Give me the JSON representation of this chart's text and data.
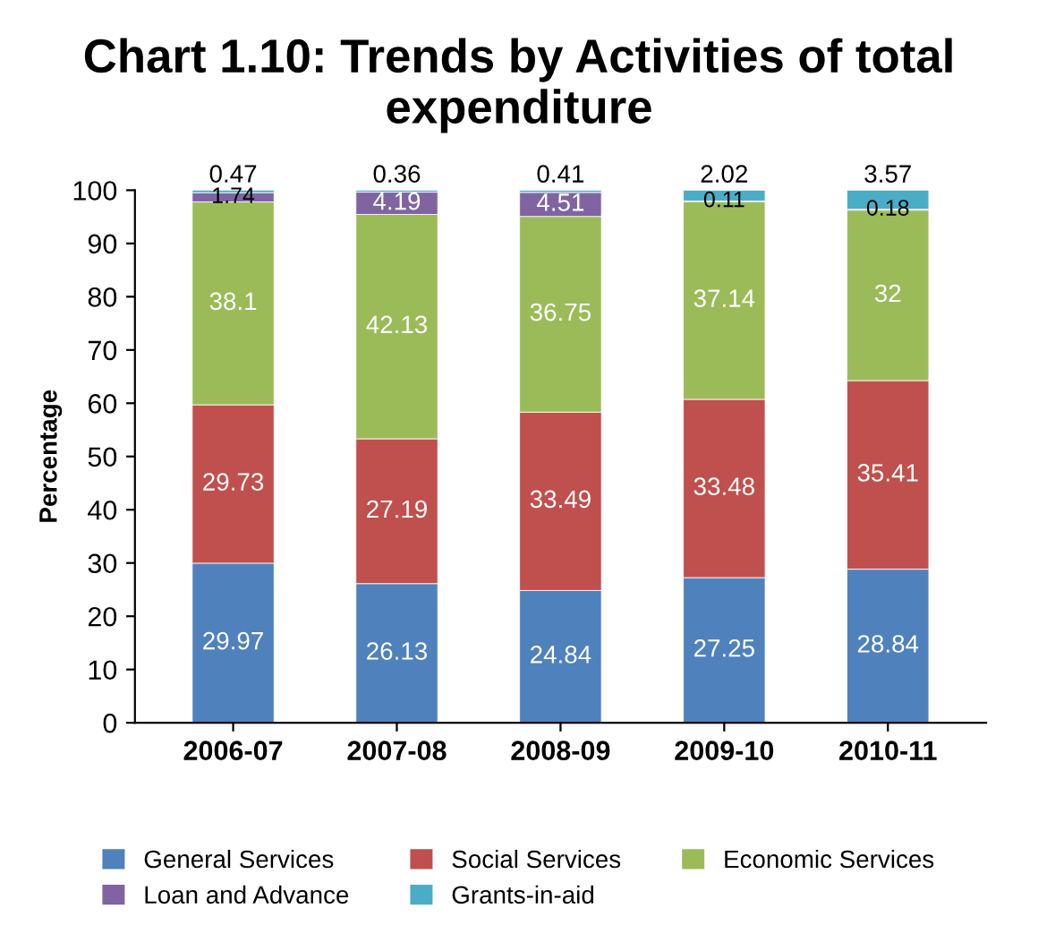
{
  "chart_data": {
    "type": "bar",
    "title": "Chart 1.10: Trends by Activities of total expenditure",
    "ylabel": "Percentage",
    "categories": [
      "2006-07",
      "2007-08",
      "2008-09",
      "2009-10",
      "2010-11"
    ],
    "stacked": true,
    "data_labels": true,
    "legend": "bottom",
    "grid": false,
    "ylim": [
      0,
      100
    ],
    "yticks": [
      0,
      10,
      20,
      30,
      40,
      50,
      60,
      70,
      80,
      90,
      100
    ],
    "series": [
      {
        "name": "General Services",
        "color": "#4f81bd",
        "values": [
          29.97,
          26.13,
          24.84,
          27.25,
          28.84
        ]
      },
      {
        "name": "Social Services",
        "color": "#c0504d",
        "values": [
          29.73,
          27.19,
          33.49,
          33.48,
          35.41
        ]
      },
      {
        "name": "Economic Services",
        "color": "#9bbb59",
        "values": [
          38.1,
          42.13,
          36.75,
          37.14,
          32
        ]
      },
      {
        "name": "Loan and Advance",
        "color": "#8064a2",
        "values": [
          1.74,
          4.19,
          4.51,
          0.11,
          0.18
        ]
      },
      {
        "name": "Grants-in-aid",
        "color": "#4bacc6",
        "values": [
          0.47,
          0.36,
          0.41,
          2.02,
          3.57
        ]
      }
    ]
  }
}
